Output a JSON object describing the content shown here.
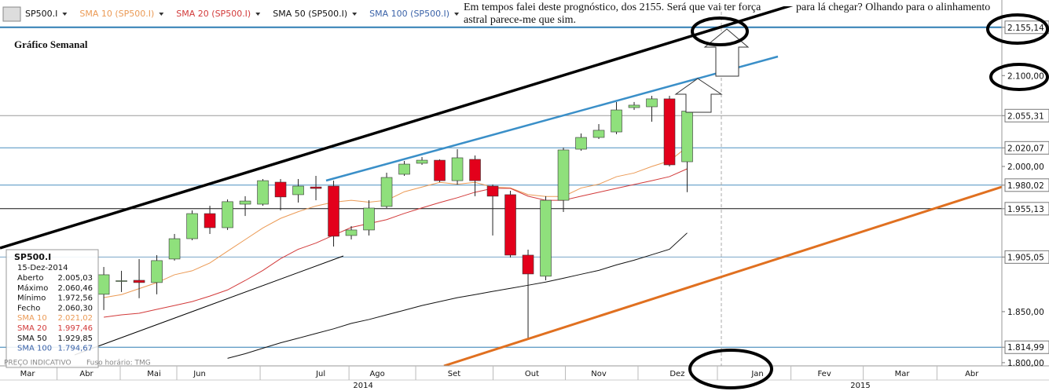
{
  "chart_data": {
    "type": "candlestick",
    "name": "SP500.I",
    "x": [
      0,
      1,
      2,
      3,
      4,
      5,
      6,
      7,
      8,
      9,
      10,
      11,
      12,
      13,
      14,
      15,
      16,
      17,
      18,
      19,
      20,
      21,
      22,
      23,
      24,
      25,
      26,
      27,
      28,
      29,
      30,
      31,
      32,
      33
    ],
    "open": [
      1867.3,
      1880.7,
      1881.4,
      1879.1,
      1903,
      1923.9,
      1950,
      1935.3,
      1959.9,
      1959.9,
      1983.2,
      1969.9,
      1978.1,
      1979,
      1927.2,
      1932.9,
      1957.5,
      1991.6,
      2003.4,
      2006.7,
      1984.8,
      2007.6,
      1979,
      1969.9,
      1907,
      1885.5,
      1964,
      2018.6,
      2031.4,
      2037.4,
      2064.2,
      2065.1,
      2073.9,
      2005.03
    ],
    "high": [
      1894.9,
      1891,
      1903,
      1907,
      1928.8,
      1953.4,
      1958.2,
      1964.9,
      1968.3,
      1986.5,
      1986.5,
      1986.5,
      1989.9,
      1984.8,
      1936.9,
      1964,
      1993.3,
      2005.9,
      2010.1,
      2007.6,
      2018.6,
      2011.8,
      1980.7,
      1974,
      1912.6,
      1968.3,
      2020.3,
      2035.7,
      2046,
      2070.4,
      2070.4,
      2077.3,
      2077.3,
      2060.46
    ],
    "low": [
      1851.6,
      1869.6,
      1863.4,
      1867.3,
      1901.4,
      1922.3,
      1928.8,
      1932.9,
      1947.5,
      1958.2,
      1953.4,
      1961.6,
      1964,
      1915.8,
      1923.1,
      1927.2,
      1955.8,
      1989.9,
      2001.7,
      1983.2,
      1980.7,
      1968.3,
      1927.2,
      1904.6,
      1823.1,
      1881.4,
      1951.7,
      2016.9,
      2029.7,
      2034.9,
      2061.6,
      2048.6,
      2000,
      1972.56
    ],
    "close": [
      1887,
      1881,
      1879.1,
      1901.4,
      1923.9,
      1950,
      1935.3,
      1962.5,
      1963.2,
      1984.8,
      1967.5,
      1979,
      1976.5,
      1926.4,
      1932.9,
      1955.8,
      1988.2,
      2002.5,
      2006.7,
      1984.8,
      2009.3,
      1984.8,
      1968.3,
      1907,
      1887.8,
      1964,
      2017.8,
      2031.4,
      2039.2,
      2061.6,
      2066.9,
      2073.9,
      2001.7,
      2060.3
    ],
    "up_color": "#8fe07c",
    "down_color": "#e3001b",
    "overlays": [
      {
        "name": "SMA 10 (SP500.I)",
        "color": "#eb9a55",
        "values": [
          1864,
          1867,
          1873,
          1879,
          1887,
          1891,
          1899,
          1911,
          1923,
          1935,
          1945,
          1952,
          1958,
          1962,
          1964,
          1962,
          1964,
          1973,
          1978,
          1983,
          1981,
          1983,
          1978,
          1977,
          1970,
          1968,
          1968,
          1977,
          1981,
          1989,
          1993,
          2000,
          2006,
          2021.02
        ]
      },
      {
        "name": "SMA 20 (SP500.I)",
        "color": "#d23a3a",
        "values": [
          1844.5,
          1846.8,
          1848.4,
          1852.3,
          1856.1,
          1860,
          1865.5,
          1871.7,
          1881.2,
          1891.4,
          1903.4,
          1913,
          1919.4,
          1927.5,
          1935.6,
          1939.6,
          1943.7,
          1950.2,
          1956,
          1961.6,
          1966.7,
          1972.5,
          1976.6,
          1976.6,
          1968.3,
          1964,
          1964,
          1968.3,
          1972.5,
          1976.6,
          1980.7,
          1984.8,
          1989.1,
          1997.46
        ]
      },
      {
        "name": "SMA 50 (SP500.I)",
        "color": "#111111",
        "values": [
          null,
          null,
          null,
          null,
          null,
          null,
          null,
          1804.2,
          1808.7,
          1814,
          1819.3,
          1823.8,
          1828.4,
          1833,
          1838.4,
          1842.2,
          1846.8,
          1851.4,
          1856.1,
          1860,
          1863.9,
          1867,
          1870.2,
          1873.3,
          1876.4,
          1879.6,
          1883.5,
          1887.5,
          1891.4,
          1897,
          1901.8,
          1907.4,
          1913,
          1929.85
        ]
      },
      {
        "name": "SMA 100 (SP500.I)",
        "color": "#3a62a8",
        "values": [
          null,
          null,
          null,
          null,
          null,
          null,
          null,
          null,
          null,
          null,
          null,
          null,
          null,
          null,
          null,
          null,
          null,
          null,
          null,
          null,
          null,
          null,
          null,
          null,
          null,
          null,
          null,
          null,
          null,
          null,
          null,
          null,
          null,
          1794.67
        ]
      }
    ],
    "xlim": [
      -5.87,
      50.8
    ],
    "xticks": [
      {
        "value": -4.31,
        "label": "Mar"
      },
      {
        "value": -0.98,
        "label": "Abr"
      },
      {
        "value": 2.84,
        "label": "Mai"
      },
      {
        "value": 5.42,
        "label": "Jun"
      },
      {
        "value": 12.27,
        "label": "Jul"
      },
      {
        "value": 15.47,
        "label": "Ago"
      },
      {
        "value": 19.82,
        "label": "Set"
      },
      {
        "value": 24.22,
        "label": "Out"
      },
      {
        "value": 28.0,
        "label": "Nov"
      },
      {
        "value": 32.44,
        "label": "Dez"
      },
      {
        "value": 36.98,
        "label": "Jan"
      },
      {
        "value": 40.76,
        "label": "Fev"
      },
      {
        "value": 45.16,
        "label": "Mar"
      },
      {
        "value": 49.1,
        "label": "Abr"
      }
    ],
    "year_ticks": [
      {
        "value": 14.67,
        "label": "2014"
      },
      {
        "value": 42.8,
        "label": "2015"
      }
    ],
    "ylim": [
      1796.9,
      2179.6
    ],
    "log_scale": true,
    "yticks": [
      {
        "value": 2155.14,
        "label": "2.155,14"
      },
      {
        "value": 2100,
        "label": "2.100,00"
      },
      {
        "value": 2055.31,
        "label": "2.055,31"
      },
      {
        "value": 2020.07,
        "label": "2.020,07"
      },
      {
        "value": 2000,
        "label": "2.000,00"
      },
      {
        "value": 1980.02,
        "label": "1.980,02"
      },
      {
        "value": 1955.13,
        "label": "1.955,13"
      },
      {
        "value": 1905.05,
        "label": "1.905,05"
      },
      {
        "value": 1850,
        "label": "1.850,00"
      },
      {
        "value": 1814.99,
        "label": "1.814,99"
      },
      {
        "value": 1800,
        "label": "1.800,00"
      }
    ],
    "grid_colors": [
      "#2f7db3",
      "none",
      "#9a9a9a",
      "#4a8fc0",
      "none",
      "#4a8fc0",
      "#111111",
      "#7aa6c8",
      "none",
      "#2f7db3",
      "none"
    ],
    "title": "Gráfico Semanal",
    "annotation_lines": [
      "Em tempos falei deste prognóstico, dos 2155. Será que vai ter força",
      "astral parece-me que sim.",
      "para lá chegar? Olhando para o alinhamento"
    ],
    "footer": "PREÇO INDICATIVO",
    "timezone": "Fuso horário: TMG",
    "info_box": {
      "title": "SP500.I",
      "date": "15-Dez-2014",
      "rows": [
        {
          "label": "Aberto",
          "text": "2.005,03",
          "color": "#111111"
        },
        {
          "label": "Máximo",
          "text": "2.060,46",
          "color": "#111111"
        },
        {
          "label": "Mínimo",
          "text": "1.972,56",
          "color": "#111111"
        },
        {
          "label": "Fecho",
          "text": "2.060,30",
          "color": "#111111"
        },
        {
          "label": "SMA 10",
          "text": "2.021,02",
          "color": "#eb9a55"
        },
        {
          "label": "SMA 20",
          "text": "1.997,46",
          "color": "#d23a3a"
        },
        {
          "label": "SMA 50",
          "text": "1.929,85",
          "color": "#111111"
        },
        {
          "label": "SMA 100",
          "text": "1.794,67",
          "color": "#3a62a8"
        }
      ]
    }
  }
}
